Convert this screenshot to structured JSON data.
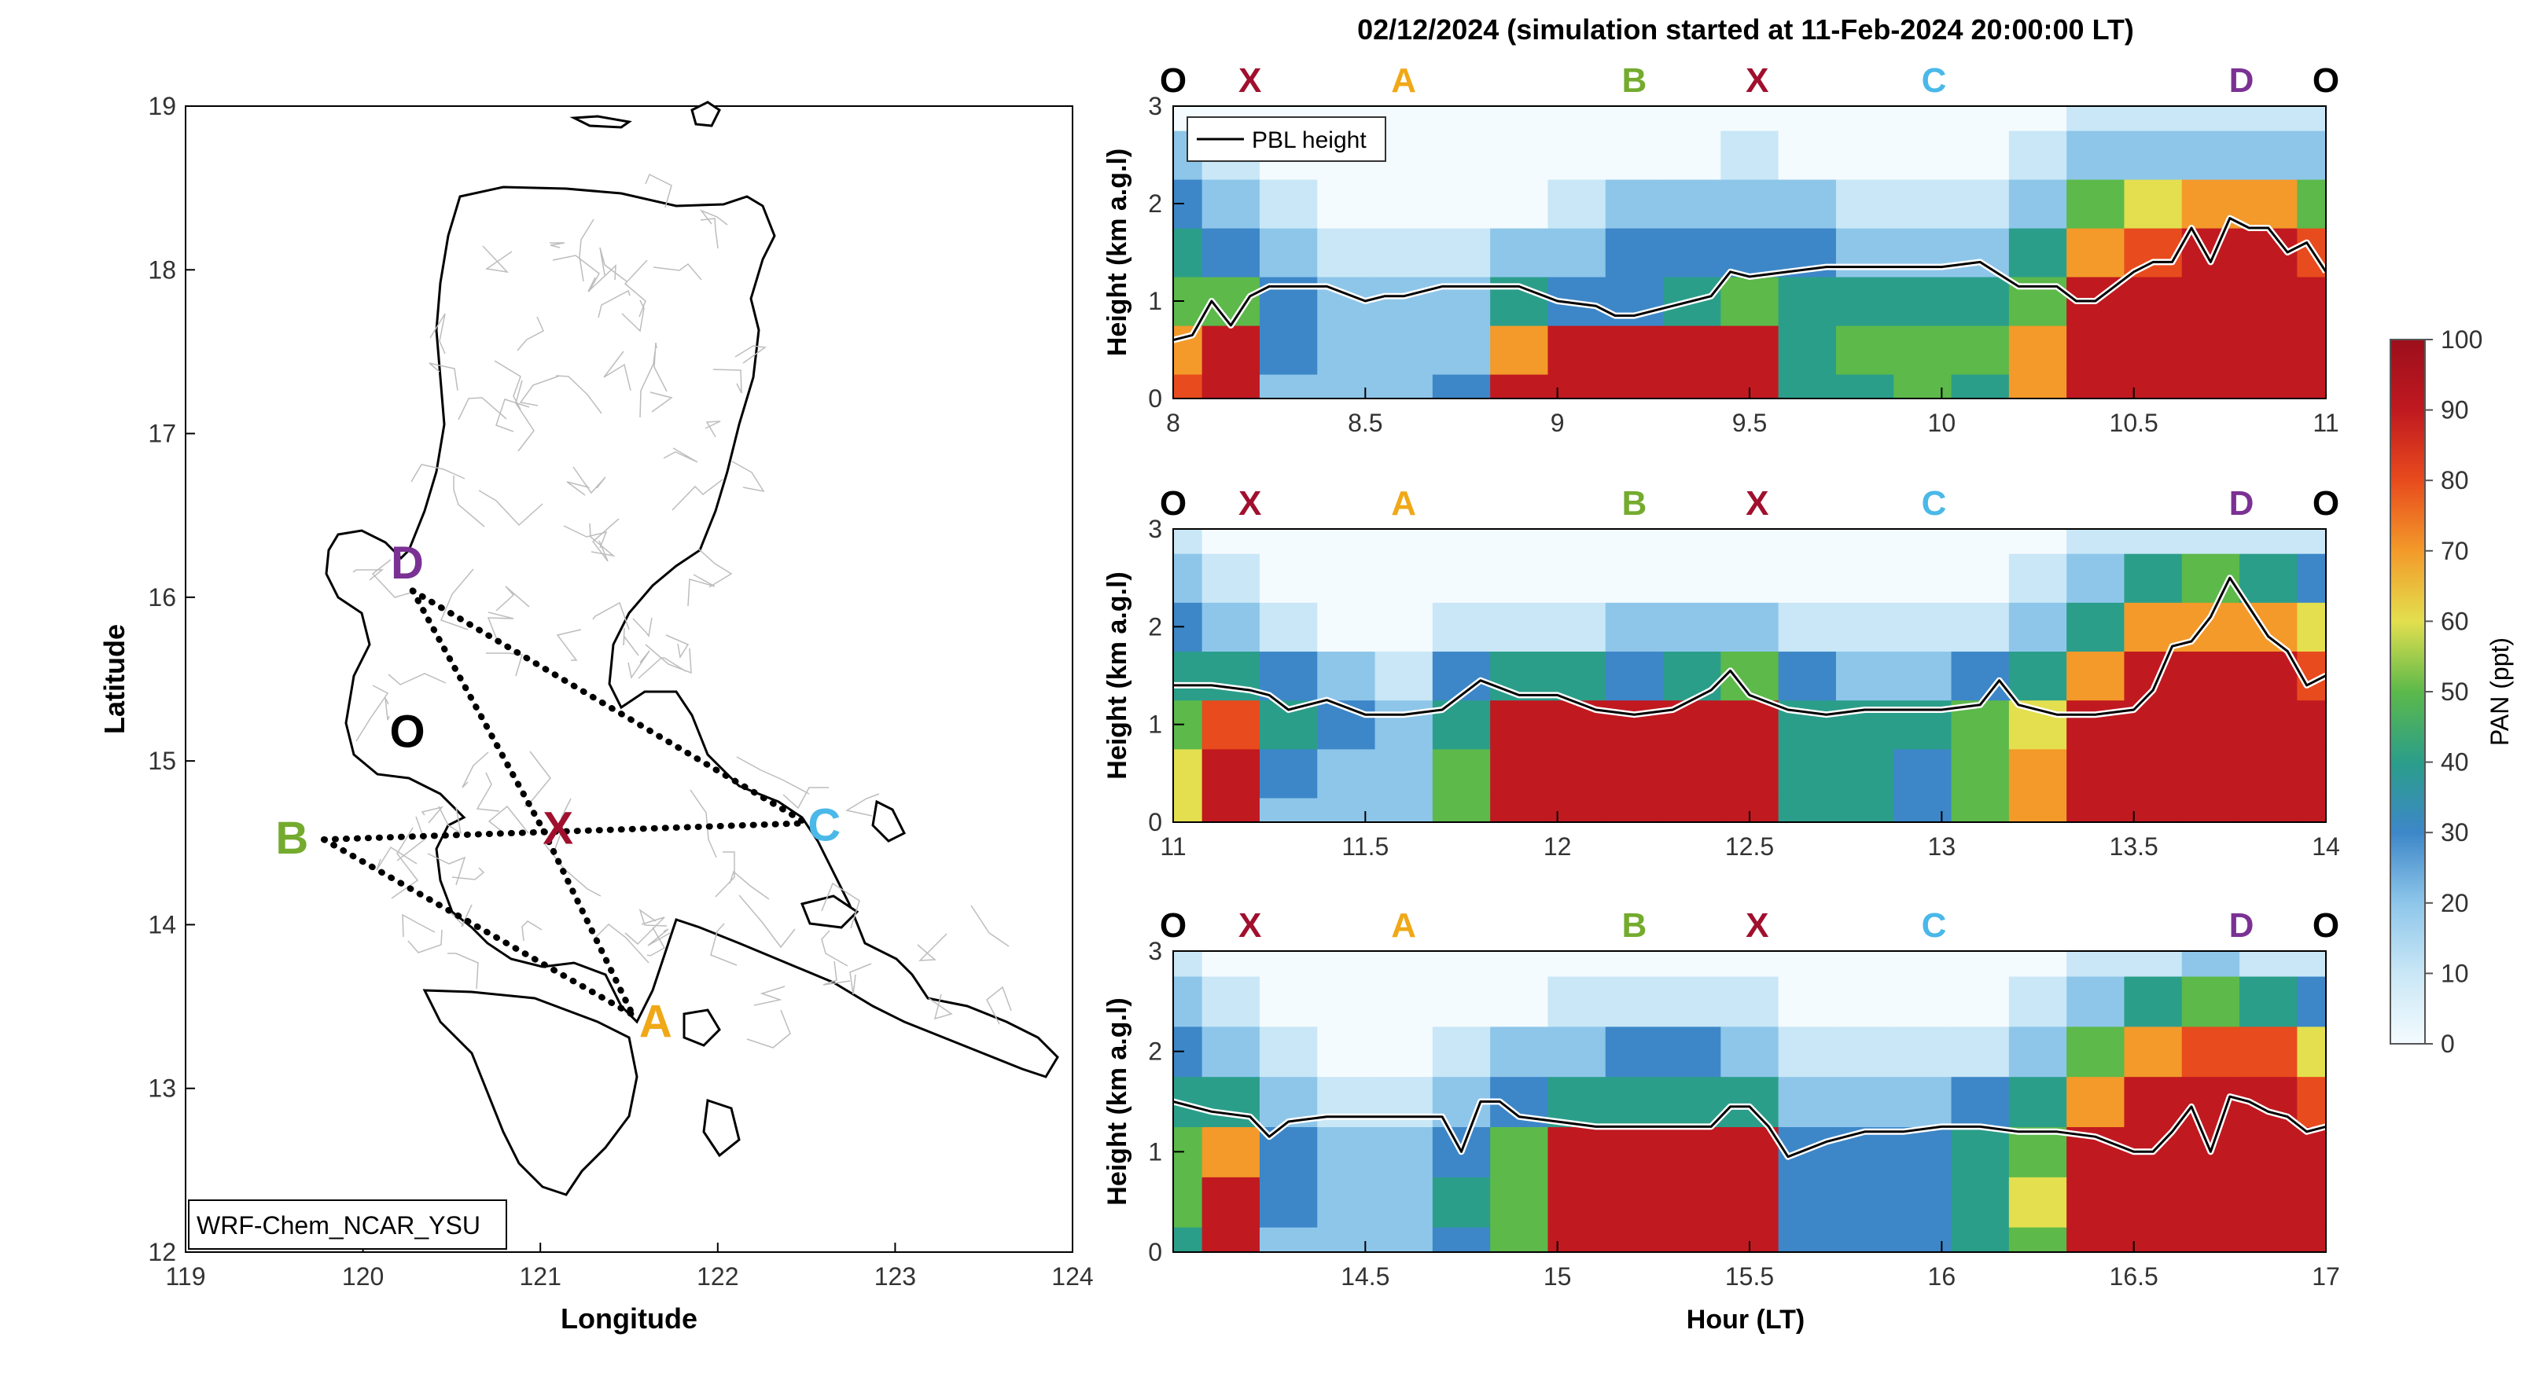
{
  "figure": {
    "main_title": "02/12/2024 (simulation started at 11-Feb-2024 20:00:00 LT)",
    "hour_xlabel": "Hour (LT)"
  },
  "colors": {
    "route_O": "#000000",
    "route_X": "#a0102e",
    "route_A": "#f0a818",
    "route_B": "#74ab2e",
    "route_C": "#4ab8e8",
    "route_D": "#7b3194",
    "pbl_line": "#000000",
    "land_outline": "#000000",
    "municipal_borders": "#bdbdbd"
  },
  "chart_data": [
    {
      "type": "map",
      "title": "",
      "xlabel": "Longitude",
      "ylabel": "Latitude",
      "xlim": [
        119,
        124
      ],
      "ylim": [
        12,
        19
      ],
      "xticks": [
        "119",
        "120",
        "121",
        "122",
        "123",
        "124"
      ],
      "yticks": [
        "12",
        "13",
        "14",
        "15",
        "16",
        "17",
        "18",
        "19"
      ],
      "model_label": "WRF-Chem_NCAR_YSU",
      "sites": [
        {
          "label": "O",
          "lon": 120.25,
          "lat": 15.17
        },
        {
          "label": "X",
          "lon": 121.1,
          "lat": 14.58
        },
        {
          "label": "A",
          "lon": 121.65,
          "lat": 13.4
        },
        {
          "label": "B",
          "lon": 119.6,
          "lat": 14.52
        },
        {
          "label": "C",
          "lon": 122.6,
          "lat": 14.6
        },
        {
          "label": "D",
          "lon": 120.25,
          "lat": 16.2
        }
      ],
      "route_vertices": [
        {
          "name": "D",
          "lon": 120.28,
          "lat": 16.04
        },
        {
          "name": "X",
          "lon": 121.02,
          "lat": 14.57
        },
        {
          "name": "A",
          "lon": 121.52,
          "lat": 13.45
        },
        {
          "name": "B",
          "lon": 119.78,
          "lat": 14.52
        },
        {
          "name": "C",
          "lon": 122.5,
          "lat": 14.62
        }
      ],
      "route_segments": [
        [
          "D",
          "X"
        ],
        [
          "D",
          "C"
        ],
        [
          "B",
          "C"
        ],
        [
          "B",
          "A"
        ],
        [
          "X",
          "A"
        ]
      ]
    },
    {
      "type": "heatmap",
      "ylabel": "Height (km a.g.l)",
      "xlim": [
        8,
        11
      ],
      "ylim": [
        0,
        3
      ],
      "xticks": [
        "8",
        "8.5",
        "9",
        "9.5",
        "10",
        "10.5",
        "11"
      ],
      "yticks": [
        "0",
        "1",
        "2",
        "3"
      ],
      "legend": "PBL height",
      "site_marks": [
        {
          "label": "O",
          "hour": 8.0
        },
        {
          "label": "X",
          "hour": 8.2
        },
        {
          "label": "A",
          "hour": 8.6
        },
        {
          "label": "B",
          "hour": 9.2
        },
        {
          "label": "X",
          "hour": 9.52
        },
        {
          "label": "C",
          "hour": 9.98
        },
        {
          "label": "D",
          "hour": 10.78
        },
        {
          "label": "O",
          "hour": 11.0
        }
      ],
      "pbl": {
        "hours": [
          8.0,
          8.05,
          8.1,
          8.15,
          8.2,
          8.25,
          8.3,
          8.4,
          8.5,
          8.55,
          8.6,
          8.7,
          8.8,
          8.9,
          9.0,
          9.1,
          9.15,
          9.2,
          9.3,
          9.4,
          9.45,
          9.5,
          9.6,
          9.7,
          9.8,
          9.9,
          10.0,
          10.1,
          10.2,
          10.3,
          10.35,
          10.4,
          10.45,
          10.5,
          10.55,
          10.6,
          10.65,
          10.7,
          10.75,
          10.8,
          10.85,
          10.9,
          10.95,
          11.0
        ],
        "km": [
          0.6,
          0.65,
          1.0,
          0.75,
          1.05,
          1.15,
          1.15,
          1.15,
          1.0,
          1.05,
          1.05,
          1.15,
          1.15,
          1.15,
          1.0,
          0.95,
          0.85,
          0.85,
          0.95,
          1.05,
          1.3,
          1.25,
          1.3,
          1.35,
          1.35,
          1.35,
          1.35,
          1.4,
          1.15,
          1.15,
          1.0,
          1.0,
          1.15,
          1.3,
          1.4,
          1.4,
          1.75,
          1.4,
          1.85,
          1.75,
          1.75,
          1.5,
          1.6,
          1.3
        ]
      },
      "pan_ppt": {
        "hours": [
          8.0,
          8.15,
          8.3,
          8.45,
          8.6,
          8.75,
          8.9,
          9.05,
          9.2,
          9.35,
          9.5,
          9.65,
          9.8,
          9.95,
          10.1,
          10.25,
          10.4,
          10.55,
          10.7,
          10.85,
          11.0
        ],
        "heights_km": [
          0,
          0.5,
          1.0,
          1.5,
          2.0,
          2.5,
          3.0
        ],
        "values": [
          [
            85,
            95,
            25,
            28,
            25,
            30,
            95,
            95,
            95,
            95,
            95,
            40,
            45,
            50,
            45,
            75,
            95,
            95,
            95,
            95,
            95
          ],
          [
            70,
            90,
            30,
            28,
            25,
            28,
            70,
            95,
            90,
            95,
            90,
            45,
            50,
            55,
            55,
            75,
            95,
            95,
            95,
            95,
            95
          ],
          [
            50,
            55,
            35,
            28,
            25,
            25,
            40,
            35,
            35,
            45,
            55,
            45,
            45,
            45,
            40,
            55,
            90,
            95,
            95,
            95,
            95
          ],
          [
            45,
            35,
            25,
            15,
            10,
            12,
            20,
            25,
            30,
            30,
            35,
            30,
            25,
            25,
            25,
            45,
            75,
            85,
            90,
            90,
            85
          ],
          [
            35,
            25,
            12,
            5,
            3,
            4,
            6,
            15,
            20,
            20,
            25,
            20,
            15,
            15,
            15,
            25,
            55,
            65,
            70,
            70,
            55
          ],
          [
            20,
            12,
            5,
            2,
            1,
            1,
            2,
            6,
            8,
            8,
            10,
            8,
            6,
            6,
            5,
            10,
            20,
            25,
            25,
            25,
            20
          ],
          [
            8,
            5,
            2,
            1,
            0,
            0,
            1,
            2,
            3,
            3,
            4,
            3,
            2,
            2,
            2,
            4,
            10,
            15,
            15,
            15,
            10
          ]
        ]
      }
    },
    {
      "type": "heatmap",
      "ylabel": "Height (km a.g.l)",
      "xlim": [
        11,
        14
      ],
      "ylim": [
        0,
        3
      ],
      "xticks": [
        "11",
        "11.5",
        "12",
        "12.5",
        "13",
        "13.5",
        "14"
      ],
      "yticks": [
        "0",
        "1",
        "2",
        "3"
      ],
      "site_marks": [
        {
          "label": "O",
          "hour": 11.0
        },
        {
          "label": "X",
          "hour": 11.2
        },
        {
          "label": "A",
          "hour": 11.6
        },
        {
          "label": "B",
          "hour": 12.2
        },
        {
          "label": "X",
          "hour": 12.52
        },
        {
          "label": "C",
          "hour": 12.98
        },
        {
          "label": "D",
          "hour": 13.78
        },
        {
          "label": "O",
          "hour": 14.0
        }
      ],
      "pbl": {
        "hours": [
          11.0,
          11.05,
          11.1,
          11.2,
          11.25,
          11.3,
          11.4,
          11.5,
          11.6,
          11.7,
          11.8,
          11.9,
          12.0,
          12.1,
          12.2,
          12.3,
          12.4,
          12.45,
          12.5,
          12.6,
          12.7,
          12.8,
          12.9,
          13.0,
          13.1,
          13.15,
          13.2,
          13.3,
          13.4,
          13.5,
          13.55,
          13.6,
          13.65,
          13.7,
          13.75,
          13.8,
          13.85,
          13.9,
          13.95,
          14.0
        ],
        "km": [
          1.4,
          1.4,
          1.4,
          1.35,
          1.3,
          1.15,
          1.25,
          1.1,
          1.1,
          1.15,
          1.45,
          1.3,
          1.3,
          1.15,
          1.1,
          1.15,
          1.35,
          1.55,
          1.3,
          1.15,
          1.1,
          1.15,
          1.15,
          1.15,
          1.2,
          1.45,
          1.2,
          1.1,
          1.1,
          1.15,
          1.35,
          1.8,
          1.85,
          2.1,
          2.5,
          2.2,
          1.9,
          1.75,
          1.4,
          1.5
        ]
      },
      "pan_ppt": {
        "hours": [
          11.0,
          11.15,
          11.3,
          11.45,
          11.6,
          11.75,
          11.9,
          12.05,
          12.2,
          12.35,
          12.5,
          12.65,
          12.8,
          12.95,
          13.1,
          13.25,
          13.4,
          13.55,
          13.7,
          13.85,
          14.0
        ],
        "heights_km": [
          0,
          0.5,
          1.0,
          1.5,
          2.0,
          2.5,
          3.0
        ],
        "values": [
          [
            60,
            95,
            28,
            26,
            25,
            55,
            95,
            95,
            95,
            95,
            95,
            45,
            40,
            30,
            55,
            75,
            95,
            95,
            95,
            95,
            95
          ],
          [
            65,
            95,
            30,
            26,
            25,
            52,
            95,
            95,
            95,
            95,
            95,
            45,
            45,
            35,
            55,
            70,
            95,
            95,
            95,
            95,
            95
          ],
          [
            55,
            80,
            40,
            30,
            28,
            45,
            95,
            95,
            95,
            95,
            90,
            45,
            45,
            40,
            50,
            60,
            90,
            95,
            95,
            95,
            95
          ],
          [
            45,
            45,
            35,
            20,
            15,
            30,
            45,
            40,
            35,
            45,
            55,
            30,
            25,
            25,
            30,
            45,
            70,
            90,
            95,
            90,
            85
          ],
          [
            35,
            25,
            15,
            8,
            6,
            10,
            12,
            18,
            25,
            20,
            20,
            15,
            12,
            12,
            15,
            25,
            45,
            70,
            75,
            70,
            60
          ],
          [
            22,
            12,
            5,
            2,
            2,
            3,
            4,
            6,
            8,
            8,
            8,
            6,
            5,
            5,
            6,
            10,
            25,
            45,
            50,
            40,
            30
          ],
          [
            10,
            5,
            2,
            1,
            0,
            1,
            1,
            2,
            3,
            3,
            3,
            2,
            2,
            2,
            3,
            5,
            12,
            15,
            15,
            15,
            10
          ]
        ]
      }
    },
    {
      "type": "heatmap",
      "xlabel": "Hour (LT)",
      "ylabel": "Height (km a.g.l)",
      "xlim": [
        14,
        17
      ],
      "ylim": [
        0,
        3
      ],
      "xticks": [
        "14.5",
        "15",
        "15.5",
        "16",
        "16.5",
        "17"
      ],
      "yticks": [
        "0",
        "1",
        "2",
        "3"
      ],
      "site_marks": [
        {
          "label": "O",
          "hour": 14.0
        },
        {
          "label": "X",
          "hour": 14.2
        },
        {
          "label": "A",
          "hour": 14.6
        },
        {
          "label": "B",
          "hour": 15.2
        },
        {
          "label": "X",
          "hour": 15.52
        },
        {
          "label": "C",
          "hour": 15.98
        },
        {
          "label": "D",
          "hour": 16.78
        },
        {
          "label": "O",
          "hour": 17.0
        }
      ],
      "pbl": {
        "hours": [
          14.0,
          14.1,
          14.2,
          14.25,
          14.3,
          14.4,
          14.5,
          14.6,
          14.7,
          14.75,
          14.8,
          14.85,
          14.9,
          15.0,
          15.1,
          15.2,
          15.3,
          15.4,
          15.45,
          15.5,
          15.55,
          15.6,
          15.7,
          15.8,
          15.9,
          16.0,
          16.1,
          16.2,
          16.3,
          16.4,
          16.5,
          16.55,
          16.6,
          16.65,
          16.7,
          16.75,
          16.8,
          16.85,
          16.9,
          16.95,
          17.0
        ],
        "km": [
          1.5,
          1.4,
          1.35,
          1.15,
          1.3,
          1.35,
          1.35,
          1.35,
          1.35,
          1.0,
          1.5,
          1.5,
          1.35,
          1.3,
          1.25,
          1.25,
          1.25,
          1.25,
          1.45,
          1.45,
          1.25,
          0.95,
          1.1,
          1.2,
          1.2,
          1.25,
          1.25,
          1.2,
          1.2,
          1.15,
          1.0,
          1.0,
          1.2,
          1.45,
          1.0,
          1.55,
          1.5,
          1.4,
          1.35,
          1.2,
          1.25
        ]
      },
      "pan_ppt": {
        "hours": [
          14.0,
          14.15,
          14.3,
          14.45,
          14.6,
          14.75,
          14.9,
          15.05,
          15.2,
          15.35,
          15.5,
          15.65,
          15.8,
          15.95,
          16.1,
          16.25,
          16.4,
          16.55,
          16.7,
          16.85,
          17.0
        ],
        "heights_km": [
          0,
          0.5,
          1.0,
          1.5,
          2.0,
          2.5,
          3.0
        ],
        "values": [
          [
            45,
            95,
            28,
            26,
            25,
            35,
            55,
            95,
            95,
            95,
            95,
            30,
            30,
            30,
            45,
            55,
            95,
            95,
            95,
            95,
            95
          ],
          [
            50,
            92,
            30,
            26,
            25,
            40,
            55,
            95,
            95,
            95,
            95,
            30,
            35,
            35,
            45,
            60,
            95,
            95,
            95,
            95,
            95
          ],
          [
            50,
            70,
            35,
            28,
            26,
            38,
            50,
            95,
            95,
            95,
            90,
            30,
            35,
            35,
            45,
            55,
            90,
            95,
            95,
            95,
            95
          ],
          [
            40,
            45,
            28,
            15,
            12,
            20,
            35,
            40,
            40,
            40,
            40,
            25,
            25,
            25,
            30,
            40,
            70,
            90,
            95,
            95,
            85
          ],
          [
            30,
            25,
            15,
            8,
            6,
            10,
            20,
            25,
            30,
            30,
            25,
            15,
            15,
            15,
            15,
            25,
            50,
            70,
            85,
            80,
            60
          ],
          [
            20,
            12,
            5,
            3,
            2,
            4,
            8,
            12,
            15,
            15,
            12,
            6,
            6,
            6,
            6,
            10,
            25,
            45,
            55,
            45,
            30
          ],
          [
            10,
            5,
            2,
            1,
            0,
            1,
            2,
            4,
            5,
            5,
            4,
            2,
            2,
            2,
            2,
            4,
            12,
            15,
            20,
            15,
            10
          ]
        ]
      }
    }
  ],
  "colorbar": {
    "label": "PAN (ppt)",
    "min": 0,
    "max": 100,
    "ticks": [
      "0",
      "10",
      "20",
      "30",
      "40",
      "50",
      "60",
      "70",
      "80",
      "90",
      "100"
    ],
    "stops": [
      {
        "value": 0,
        "color": "#f4fbfe"
      },
      {
        "value": 10,
        "color": "#c9e7f6"
      },
      {
        "value": 20,
        "color": "#8ec6ea"
      },
      {
        "value": 30,
        "color": "#3d87c8"
      },
      {
        "value": 40,
        "color": "#2b9e8a"
      },
      {
        "value": 50,
        "color": "#5cb94a"
      },
      {
        "value": 60,
        "color": "#e3df4e"
      },
      {
        "value": 70,
        "color": "#f39a2a"
      },
      {
        "value": 80,
        "color": "#e84b1d"
      },
      {
        "value": 90,
        "color": "#c01920"
      },
      {
        "value": 100,
        "color": "#9c0f1c"
      }
    ]
  }
}
